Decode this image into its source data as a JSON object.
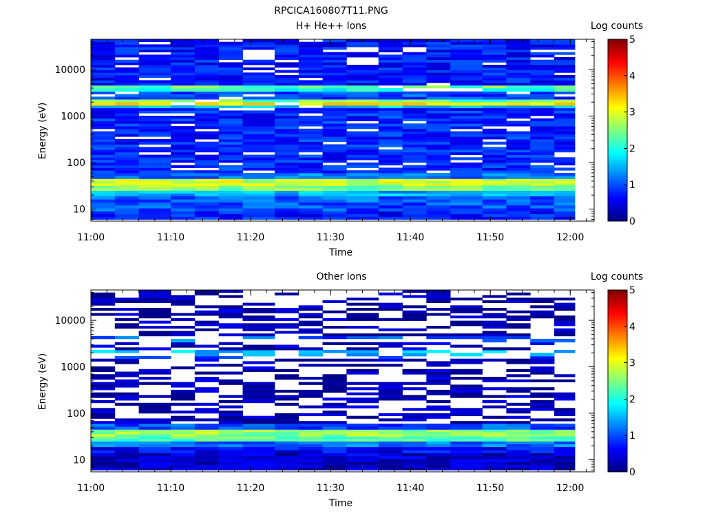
{
  "figure_title": "RPCICA160807T11.PNG",
  "chart_data": [
    {
      "type": "heatmap",
      "title": "H+ He++ Ions",
      "xlabel": "Time",
      "ylabel": "Energy (eV)",
      "y_scale": "log",
      "x_range": [
        "11:00",
        "12:03"
      ],
      "y_range": [
        5.5,
        45000
      ],
      "x_ticks": [
        "11:00",
        "11:10",
        "11:20",
        "11:30",
        "11:40",
        "11:50",
        "12:00"
      ],
      "y_ticks": [
        "10",
        "100",
        "1000",
        "10000"
      ],
      "colorbar": {
        "label": "Log counts",
        "range": [
          0,
          5
        ],
        "ticks": [
          "0",
          "1",
          "2",
          "3",
          "4",
          "5"
        ],
        "colormap": "jet"
      },
      "time_bins": [
        "11:00",
        "11:03",
        "11:06",
        "11:10",
        "11:13",
        "11:16",
        "11:19",
        "11:23",
        "11:26",
        "11:29",
        "11:32",
        "11:36",
        "11:39",
        "11:42",
        "11:45",
        "11:49",
        "11:52",
        "11:55",
        "11:58"
      ],
      "bands": [
        {
          "energy_range": [
            6,
            9
          ],
          "log_counts": 0.7
        },
        {
          "energy_range": [
            9,
            14
          ],
          "log_counts": 1.0
        },
        {
          "energy_range": [
            14,
            19
          ],
          "log_counts": 1.1
        },
        {
          "energy_range": [
            19,
            25
          ],
          "log_counts": 1.5
        },
        {
          "energy_range": [
            25,
            32
          ],
          "log_counts": 2.5
        },
        {
          "energy_range": [
            32,
            45
          ],
          "log_counts": 2.9
        },
        {
          "energy_range": [
            45,
            60
          ],
          "log_counts": 1.2
        },
        {
          "energy_range": [
            60,
            1500
          ],
          "log_counts": 0.8
        },
        {
          "energy_range": [
            1500,
            1700
          ],
          "log_counts": 1.6
        },
        {
          "energy_range": [
            1700,
            2000
          ],
          "log_counts": 3.3
        },
        {
          "energy_range": [
            2000,
            2300
          ],
          "log_counts": 2.4
        },
        {
          "energy_range": [
            2300,
            3400
          ],
          "log_counts": 1.0
        },
        {
          "energy_range": [
            3400,
            4000
          ],
          "log_counts": 2.0
        },
        {
          "energy_range": [
            4000,
            4600
          ],
          "log_counts": 2.4
        },
        {
          "energy_range": [
            4600,
            45000
          ],
          "log_counts": 0.7
        }
      ],
      "sparsity": 0.1
    },
    {
      "type": "heatmap",
      "title": "Other Ions",
      "xlabel": "Time",
      "ylabel": "Energy (eV)",
      "y_scale": "log",
      "x_range": [
        "11:00",
        "12:03"
      ],
      "y_range": [
        5.5,
        45000
      ],
      "x_ticks": [
        "11:00",
        "11:10",
        "11:20",
        "11:30",
        "11:40",
        "11:50",
        "12:00"
      ],
      "y_ticks": [
        "10",
        "100",
        "1000",
        "10000"
      ],
      "colorbar": {
        "label": "Log counts",
        "range": [
          0,
          5
        ],
        "ticks": [
          "0",
          "1",
          "2",
          "3",
          "4",
          "5"
        ],
        "colormap": "jet"
      },
      "time_bins": [
        "11:00",
        "11:03",
        "11:06",
        "11:10",
        "11:13",
        "11:16",
        "11:19",
        "11:23",
        "11:26",
        "11:29",
        "11:32",
        "11:36",
        "11:39",
        "11:42",
        "11:45",
        "11:49",
        "11:52",
        "11:55",
        "11:58"
      ],
      "bands": [
        {
          "energy_range": [
            6,
            9
          ],
          "log_counts": 0.3
        },
        {
          "energy_range": [
            9,
            14
          ],
          "log_counts": 0.4
        },
        {
          "energy_range": [
            14,
            19
          ],
          "log_counts": 0.6
        },
        {
          "energy_range": [
            19,
            25
          ],
          "log_counts": 1.2
        },
        {
          "energy_range": [
            25,
            32
          ],
          "log_counts": 2.3
        },
        {
          "energy_range": [
            32,
            45
          ],
          "log_counts": 2.6
        },
        {
          "energy_range": [
            45,
            60
          ],
          "log_counts": 1.0
        },
        {
          "energy_range": [
            60,
            1500
          ],
          "log_counts": 0.25
        },
        {
          "energy_range": [
            1500,
            1700
          ],
          "log_counts": 1.0
        },
        {
          "energy_range": [
            1700,
            2000
          ],
          "log_counts": 1.5
        },
        {
          "energy_range": [
            2000,
            2300
          ],
          "log_counts": 1.6
        },
        {
          "energy_range": [
            2300,
            3400
          ],
          "log_counts": 0.3
        },
        {
          "energy_range": [
            3400,
            4000
          ],
          "log_counts": 1.2
        },
        {
          "energy_range": [
            4000,
            4600
          ],
          "log_counts": 1.0
        },
        {
          "energy_range": [
            4600,
            45000
          ],
          "log_counts": 0.2
        }
      ],
      "sparsity": 0.55
    }
  ]
}
